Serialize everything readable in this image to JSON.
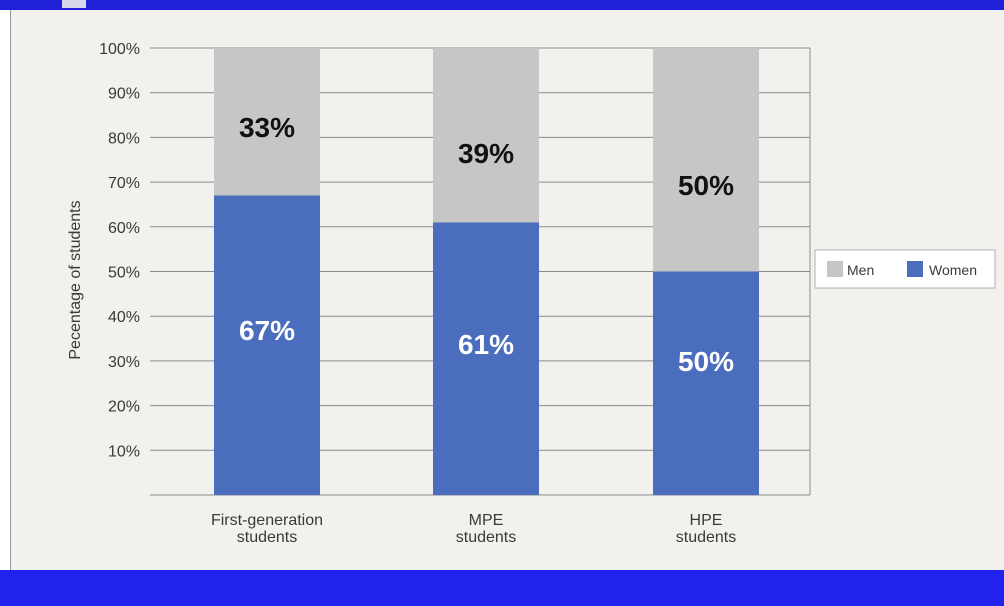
{
  "chart_data": {
    "type": "bar",
    "stacked": true,
    "categories": [
      [
        "First-generation",
        "students"
      ],
      [
        "MPE",
        "students"
      ],
      [
        "HPE",
        "students"
      ]
    ],
    "series": [
      {
        "name": "Women",
        "values": [
          67,
          61,
          50
        ],
        "labels": [
          "67%",
          "61%",
          "50%"
        ],
        "color": "#4a6dbd",
        "label_color": "#ffffff"
      },
      {
        "name": "Men",
        "values": [
          33,
          39,
          50
        ],
        "labels": [
          "33%",
          "39%",
          "50%"
        ],
        "color": "#c6c6c6",
        "label_color": "#111111"
      }
    ],
    "ylabel": "Pecentage of students",
    "xlabel": "",
    "title": "",
    "ylim": [
      0,
      100
    ],
    "yticks": [
      10,
      20,
      30,
      40,
      50,
      60,
      70,
      80,
      90,
      100
    ],
    "ytick_labels": [
      "10%",
      "20%",
      "30%",
      "40%",
      "50%",
      "60%",
      "70%",
      "80%",
      "90%",
      "100%"
    ],
    "grid": true,
    "legend": {
      "placement": "right",
      "entries": [
        "Men",
        "Women"
      ]
    }
  },
  "colors": {
    "frame_bar": "#2222ee",
    "plot_background": "#f2f1ee",
    "grid": "#8a8a8a"
  }
}
